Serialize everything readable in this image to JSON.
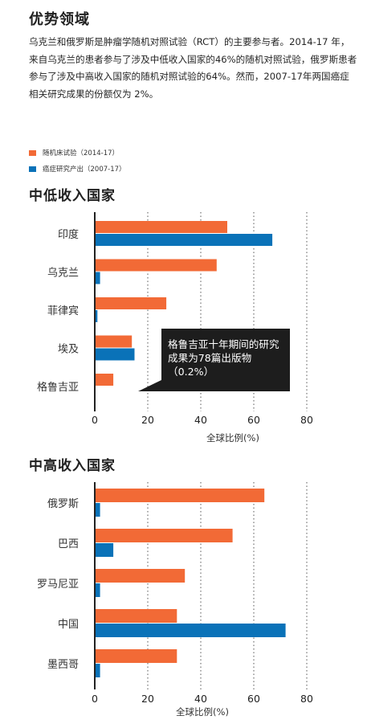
{
  "header": {
    "title": "优势领域",
    "paragraph": "乌克兰和俄罗斯是肿瘤学随机对照试验（RCT）的主要参与者。2014-17 年，来自乌克兰的患者参与了涉及中低收入国家的46%的随机对照试验，俄罗斯患者参与了涉及中高收入国家的随机对照试验的64%。然而，2007-17年两国癌症相关研究成果的份额仅为 2%。"
  },
  "legend": [
    {
      "label": "随机床试验（2014-17）",
      "color": "#f26a36"
    },
    {
      "label": "癌症研究产出（2007-17）",
      "color": "#0a72b8"
    }
  ],
  "chart_data": [
    {
      "type": "bar",
      "orientation": "horizontal",
      "title": "中低收入国家",
      "categories": [
        "印度",
        "乌克兰",
        "菲律宾",
        "埃及",
        "格鲁吉亚"
      ],
      "series": [
        {
          "name": "随机床试验（2014-17）",
          "color": "#f26a36",
          "values": [
            50,
            46,
            27,
            14,
            7
          ]
        },
        {
          "name": "癌症研究产出（2007-17）",
          "color": "#0a72b8",
          "values": [
            67,
            2,
            1,
            15,
            0.2
          ]
        }
      ],
      "xlim": [
        0,
        80
      ],
      "xticks": [
        0,
        20,
        40,
        60,
        80
      ],
      "xlabel": "全球比例(%)",
      "grid": "vertical-dotted",
      "annotation": "格鲁吉亚十年期间的研究成果为78篇出版物（0.2%）"
    },
    {
      "type": "bar",
      "orientation": "horizontal",
      "title": "中高收入国家",
      "categories": [
        "俄罗斯",
        "巴西",
        "罗马尼亚",
        "中国",
        "墨西哥"
      ],
      "series": [
        {
          "name": "随机床试验（2014-17）",
          "color": "#f26a36",
          "values": [
            64,
            52,
            34,
            31,
            31
          ]
        },
        {
          "name": "癌症研究产出（2007-17）",
          "color": "#0a72b8",
          "values": [
            2,
            7,
            2,
            72,
            2
          ]
        }
      ],
      "xlim": [
        0,
        80
      ],
      "xticks": [
        0,
        20,
        40,
        60,
        80
      ],
      "xlabel": "全球比例(%)",
      "grid": "vertical-dotted"
    }
  ]
}
